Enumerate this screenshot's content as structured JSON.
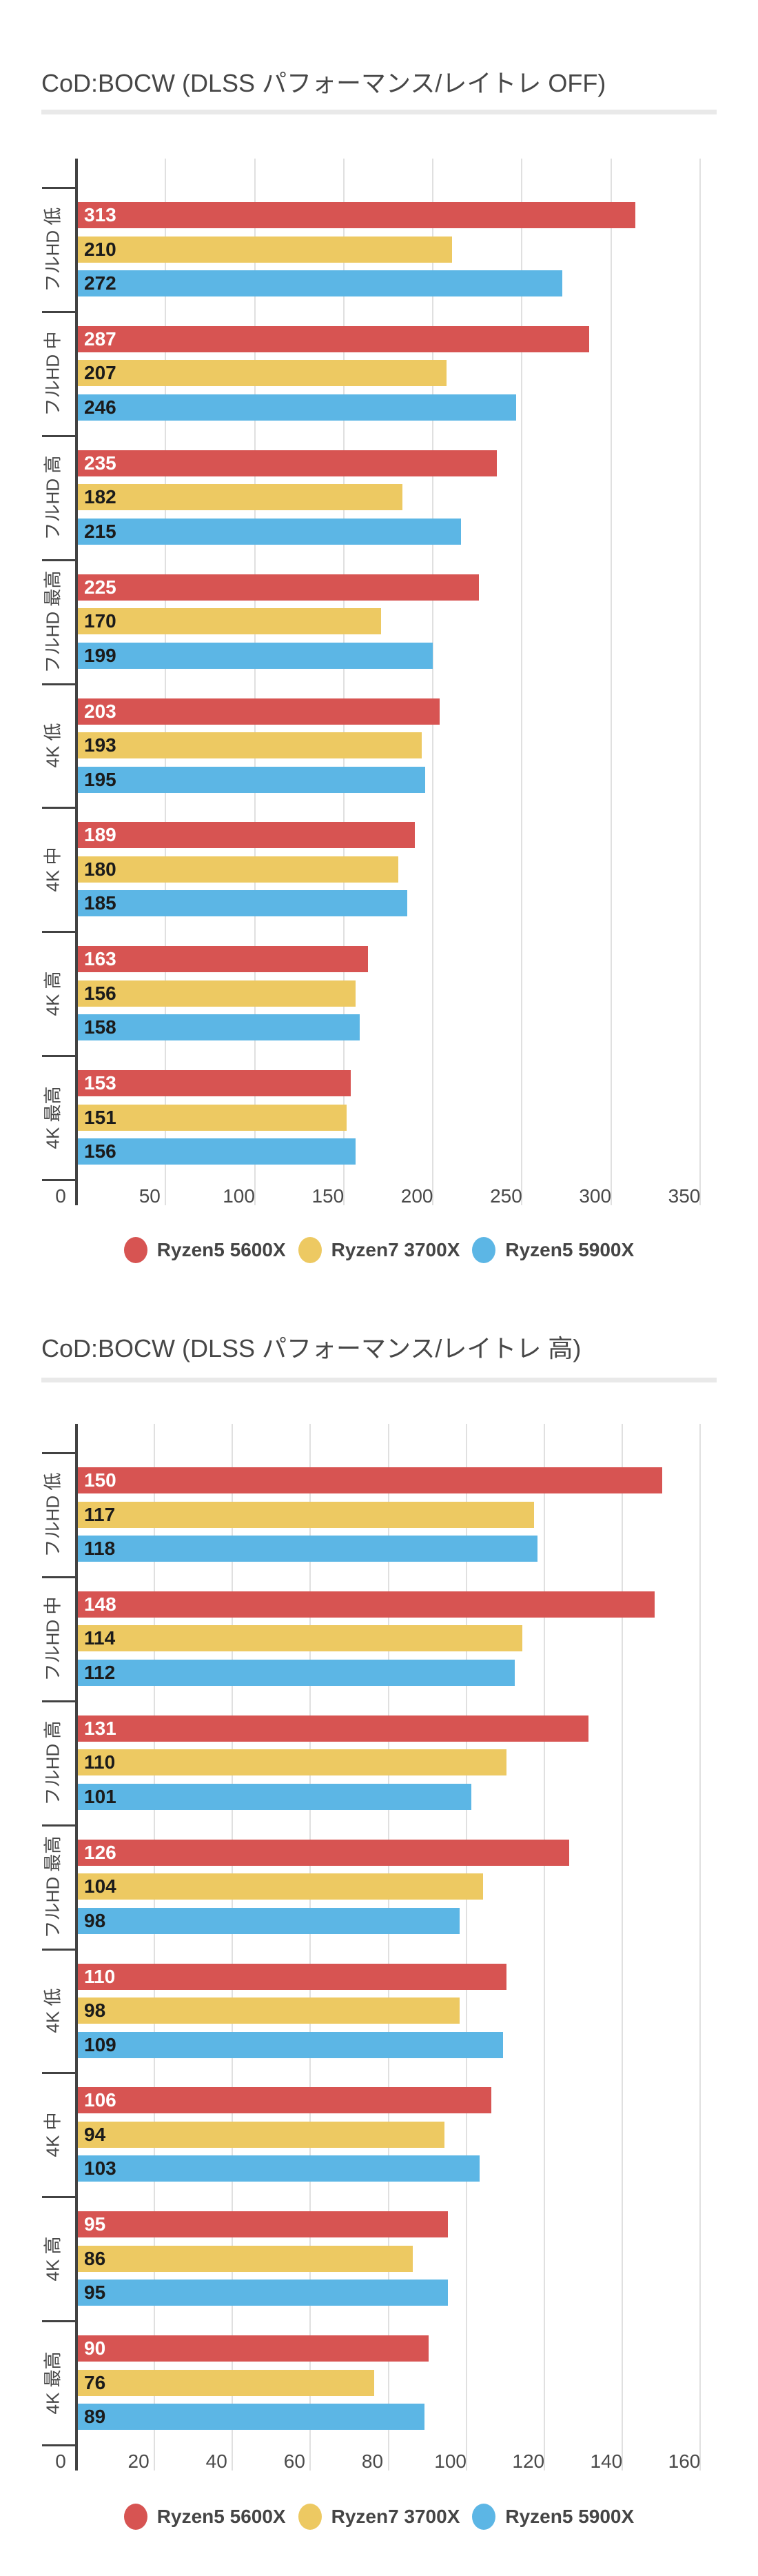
{
  "palette": {
    "background": "#ffffff",
    "axis_line": "#424242",
    "gridline": "#e0e0e0",
    "divider": "#e9e9e9",
    "title_text": "#474747",
    "axis_label_text": "#4a4a4a",
    "category_label_text": "#484848",
    "legend_text": "#454545"
  },
  "chart_data": [
    {
      "type": "bar",
      "orientation": "horizontal",
      "title": "CoD:BOCW (DLSS パフォーマンス/レイトレ OFF)",
      "categories": [
        "フルHD 低",
        "フルHD 中",
        "フルHD 高",
        "フルHD 最高",
        "4K 低",
        "4K 中",
        "4K 高",
        "4K 最高"
      ],
      "series": [
        {
          "name": "Ryzen5 5600X",
          "color": "#d75452",
          "label_color": "#ffffff",
          "values": [
            313,
            287,
            235,
            225,
            203,
            189,
            163,
            153
          ]
        },
        {
          "name": "Ryzen7 3700X",
          "color": "#edc962",
          "label_color": "#1b1b1b",
          "values": [
            210,
            207,
            182,
            170,
            193,
            180,
            156,
            151
          ]
        },
        {
          "name": "Ryzen5 5900X",
          "color": "#5cb6e5",
          "label_color": "#1b1b1b",
          "values": [
            272,
            246,
            215,
            199,
            195,
            185,
            158,
            156
          ]
        }
      ],
      "xlabel": "",
      "ylabel": "",
      "xlim": [
        0,
        362
      ],
      "xticks": [
        0,
        50,
        100,
        150,
        200,
        250,
        300,
        350
      ],
      "grid": true,
      "value_labels": true,
      "legend_position": "bottom"
    },
    {
      "type": "bar",
      "orientation": "horizontal",
      "title": "CoD:BOCW (DLSS パフォーマンス/レイトレ 高)",
      "categories": [
        "フルHD 低",
        "フルHD 中",
        "フルHD 高",
        "フルHD 最高",
        "4K 低",
        "4K 中",
        "4K 高",
        "4K 最高"
      ],
      "series": [
        {
          "name": "Ryzen5 5600X",
          "color": "#d75452",
          "label_color": "#ffffff",
          "values": [
            150,
            148,
            131,
            126,
            110,
            106,
            95,
            90
          ]
        },
        {
          "name": "Ryzen7 3700X",
          "color": "#edc962",
          "label_color": "#1b1b1b",
          "values": [
            117,
            114,
            110,
            104,
            98,
            94,
            86,
            76
          ]
        },
        {
          "name": "Ryzen5 5900X",
          "color": "#5cb6e5",
          "label_color": "#1b1b1b",
          "values": [
            118,
            112,
            101,
            98,
            109,
            103,
            95,
            89
          ]
        }
      ],
      "xlabel": "",
      "ylabel": "",
      "xlim": [
        0,
        166
      ],
      "xticks": [
        0,
        20,
        40,
        60,
        80,
        100,
        120,
        140,
        160
      ],
      "grid": true,
      "value_labels": true,
      "legend_position": "bottom"
    }
  ]
}
